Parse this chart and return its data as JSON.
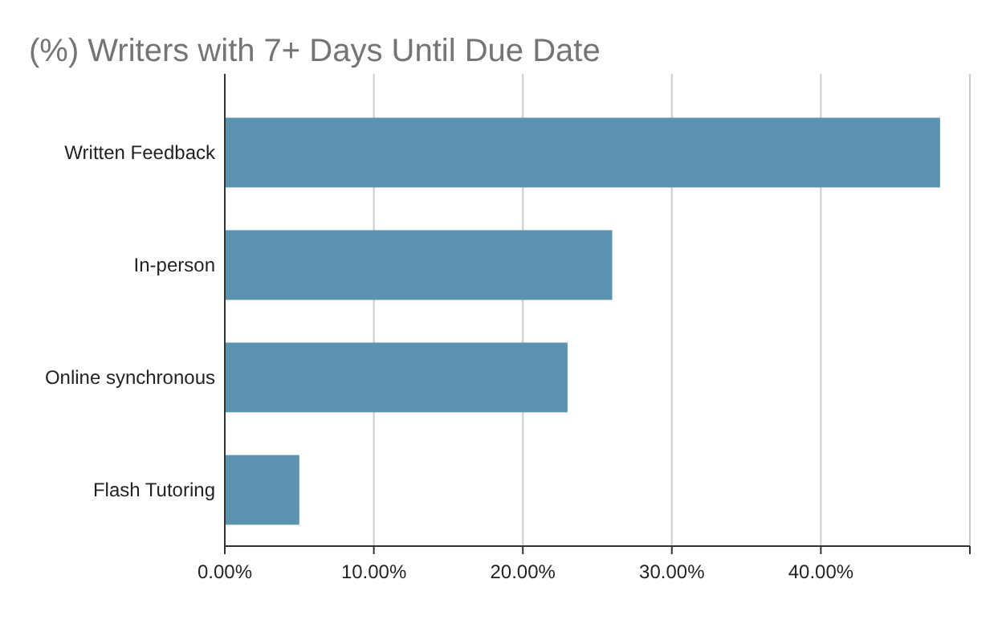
{
  "chart_data": {
    "type": "bar",
    "orientation": "horizontal",
    "title": "(%) Writers with 7+ Days Until Due Date",
    "categories": [
      "Written Feedback",
      "In-person",
      "Online synchronous",
      "Flash Tutoring"
    ],
    "values": [
      48,
      26,
      23,
      5
    ],
    "color": "#5b93b0",
    "xlim": [
      0,
      50
    ],
    "xticks": [
      {
        "value": 0,
        "label": "0.00%"
      },
      {
        "value": 10,
        "label": "10.00%"
      },
      {
        "value": 20,
        "label": "20.00%"
      },
      {
        "value": 30,
        "label": "30.00%"
      },
      {
        "value": 40,
        "label": "40.00%"
      },
      {
        "value": 50,
        "label": null
      }
    ],
    "grid": "x"
  }
}
